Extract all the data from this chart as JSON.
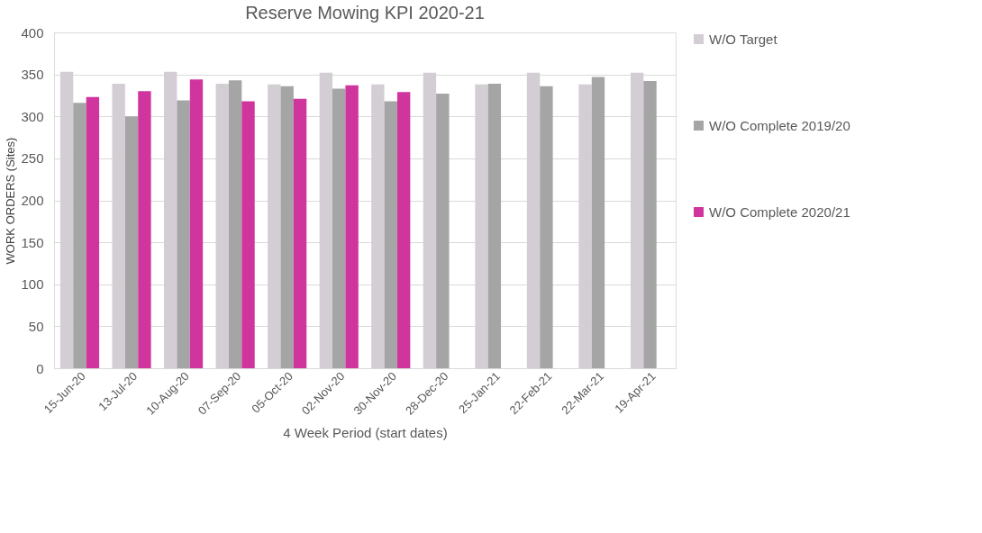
{
  "chart_data": {
    "type": "bar",
    "title": "Reserve Mowing KPI  2020-21",
    "xlabel": "4 Week Period (start dates)",
    "ylabel": "WORK ORDERS (Sites)",
    "categories": [
      "15-Jun-20",
      "13-Jul-20",
      "10-Aug-20",
      "07-Sep-20",
      "05-Oct-20",
      "02-Nov-20",
      "30-Nov-20",
      "28-Dec-20",
      "25-Jan-21",
      "22-Feb-21",
      "22-Mar-21",
      "19-Apr-21"
    ],
    "series": [
      {
        "name": "W/O Target",
        "color": "#d3ced4",
        "values": [
          353,
          339,
          353,
          339,
          338,
          352,
          338,
          352,
          338,
          352,
          338,
          352
        ]
      },
      {
        "name": "W/O Complete 2019/20",
        "color": "#a5a5a5",
        "values": [
          316,
          300,
          319,
          343,
          336,
          333,
          318,
          327,
          339,
          336,
          347,
          342
        ]
      },
      {
        "name": "W/O Complete 2020/21",
        "color": "#d0359e",
        "values": [
          323,
          330,
          344,
          318,
          321,
          337,
          329,
          null,
          null,
          null,
          null,
          null
        ]
      }
    ],
    "ylim": [
      0,
      400
    ],
    "yticks": [
      0,
      50,
      100,
      150,
      200,
      250,
      300,
      350,
      400
    ],
    "grid": "y",
    "legend": "right"
  }
}
